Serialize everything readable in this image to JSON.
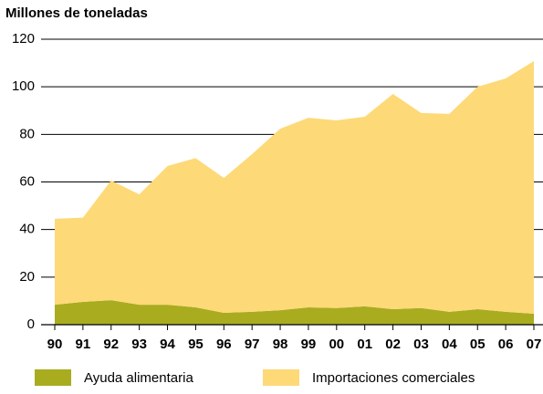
{
  "chart_data": {
    "type": "stacked_area",
    "title": "Millones de toneladas",
    "categories": [
      "90",
      "91",
      "92",
      "93",
      "94",
      "95",
      "96",
      "97",
      "98",
      "99",
      "00",
      "01",
      "02",
      "03",
      "04",
      "05",
      "06",
      "07"
    ],
    "series": [
      {
        "name": "Ayuda alimentaria",
        "color": "#a9ac1f",
        "values": [
          8.4,
          9.6,
          10.3,
          8.4,
          8.4,
          7.3,
          5,
          5.4,
          6.1,
          7.3,
          7,
          7.7,
          6.5,
          7,
          5.4,
          6.5,
          5.4,
          4.6
        ]
      },
      {
        "name": "Importaciones comerciales",
        "color": "#fdd978",
        "values": [
          36.1,
          35.4,
          50.3,
          46.4,
          58.3,
          62.7,
          56.7,
          66.3,
          76.3,
          79.7,
          78.9,
          79.7,
          90.5,
          82,
          83.2,
          93.5,
          98.1,
          106.2
        ]
      }
    ],
    "ylim": [
      0,
      120
    ],
    "yticks": [
      0,
      20,
      40,
      60,
      80,
      100,
      120
    ],
    "grid": true,
    "legend": "bottom"
  }
}
